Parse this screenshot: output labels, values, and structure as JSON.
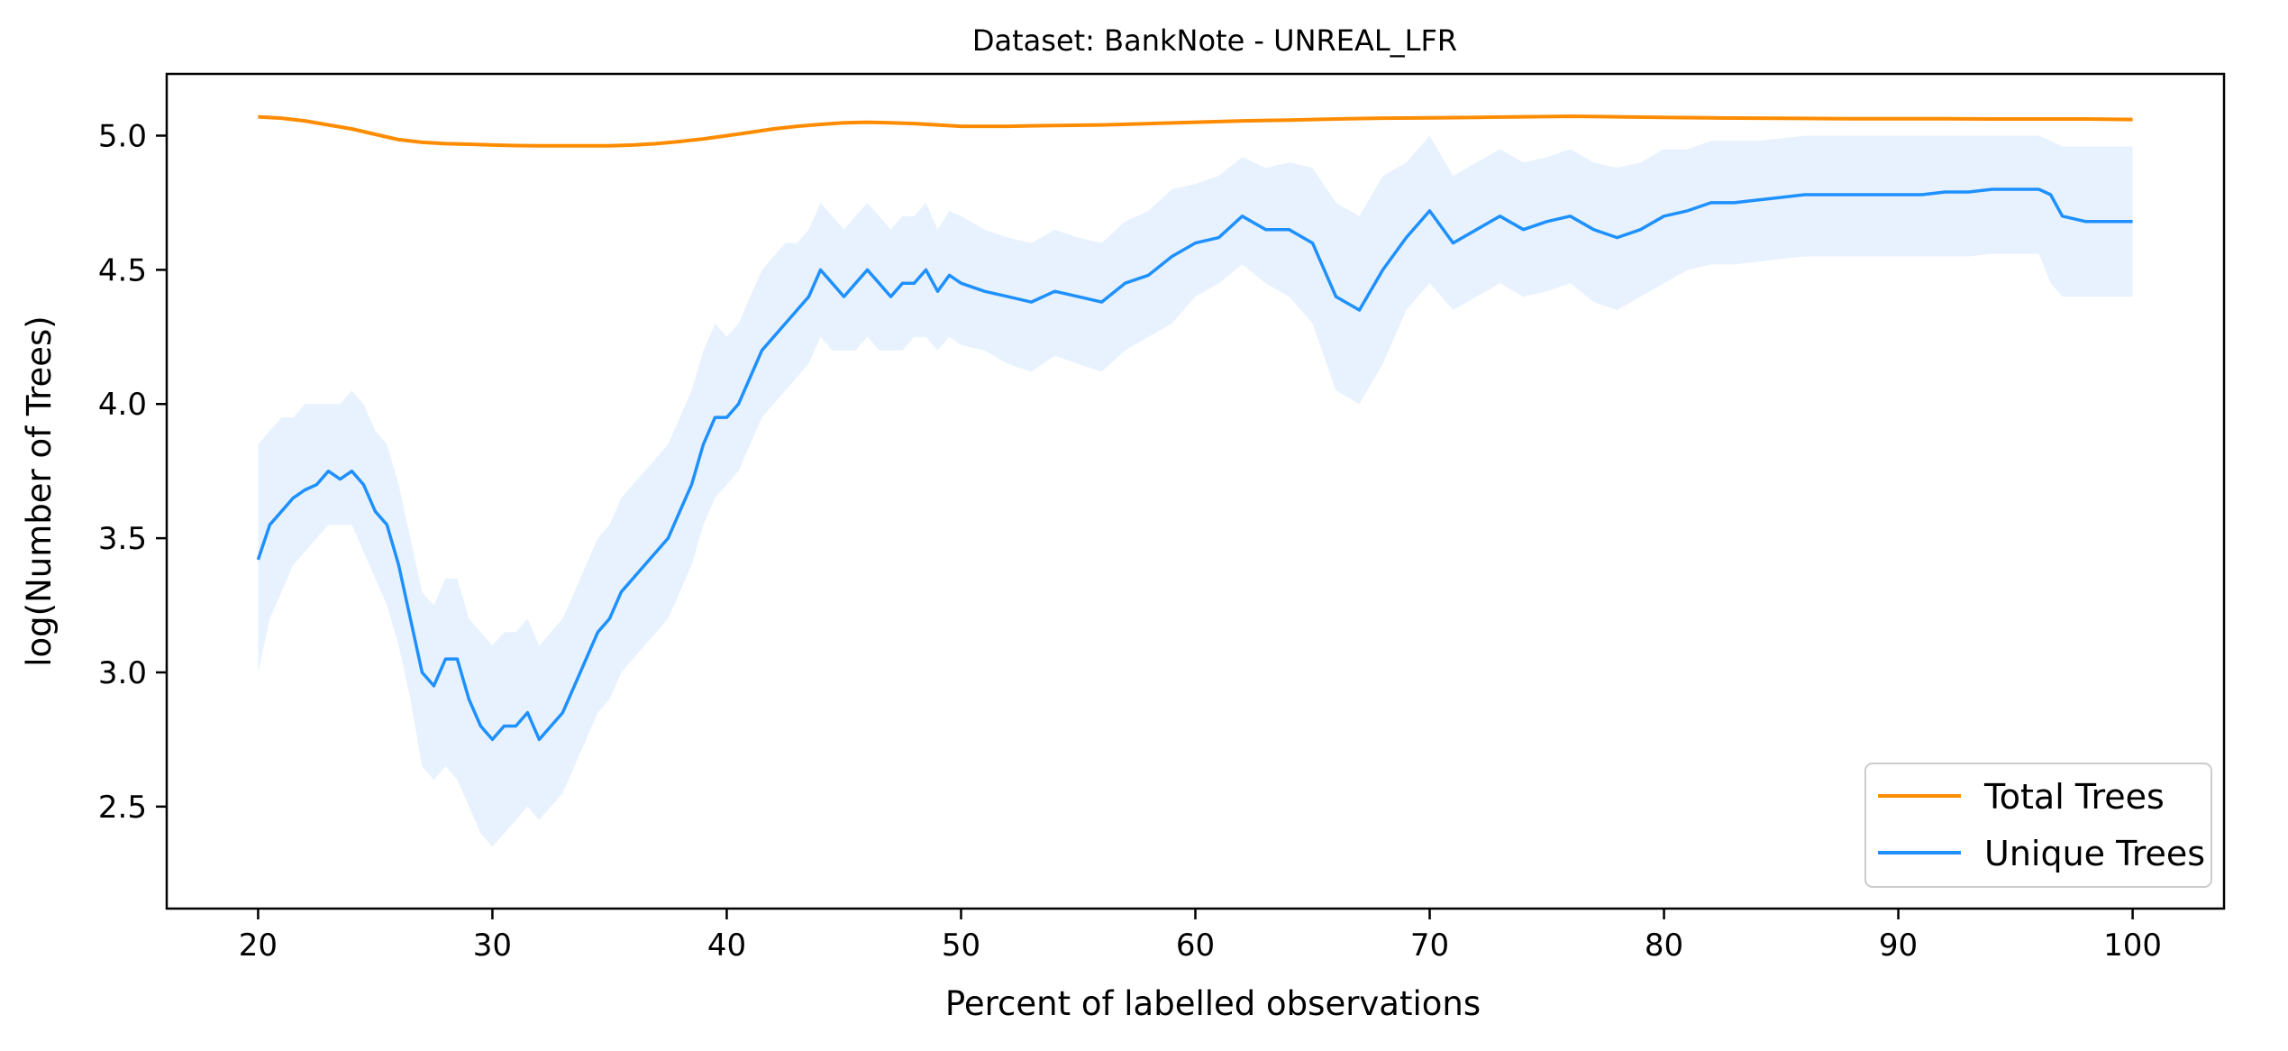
{
  "chart_data": {
    "type": "line",
    "title": "Dataset: BankNote - UNREAL_LFR",
    "xlabel": "Percent of labelled observations",
    "ylabel": "log(Number of Trees)",
    "xlim": [
      16.1,
      103.9
    ],
    "ylim": [
      2.12,
      5.23
    ],
    "x_ticks": [
      20,
      30,
      40,
      50,
      60,
      70,
      80,
      90,
      100
    ],
    "y_ticks": [
      2.5,
      3.0,
      3.5,
      4.0,
      4.5,
      5.0
    ],
    "x_tick_labels": [
      "20",
      "30",
      "40",
      "50",
      "60",
      "70",
      "80",
      "90",
      "100"
    ],
    "y_tick_labels": [
      "2.5",
      "3.0",
      "3.5",
      "4.0",
      "4.5",
      "5.0"
    ],
    "grid": false,
    "legend_position": "lower-right",
    "colors": {
      "total": "#ff8c00",
      "unique": "#1e90ff",
      "band": "#e8f2fe"
    },
    "series": [
      {
        "name": "Total Trees",
        "x": [
          20,
          21,
          22,
          23,
          24,
          25,
          26,
          27,
          28,
          29,
          30,
          31,
          32,
          33,
          34,
          35,
          36,
          37,
          38,
          39,
          40,
          41,
          42,
          43,
          44,
          45,
          46,
          47,
          48,
          49,
          50,
          52,
          54,
          56,
          58,
          60,
          62,
          64,
          66,
          68,
          70,
          72,
          74,
          76,
          78,
          80,
          82,
          84,
          86,
          88,
          90,
          92,
          94,
          96,
          98,
          100
        ],
        "values": [
          5.07,
          5.065,
          5.055,
          5.04,
          5.025,
          5.005,
          4.985,
          4.975,
          4.97,
          4.968,
          4.965,
          4.963,
          4.962,
          4.962,
          4.962,
          4.962,
          4.965,
          4.97,
          4.978,
          4.988,
          5.0,
          5.012,
          5.025,
          5.035,
          5.042,
          5.048,
          5.05,
          5.048,
          5.045,
          5.04,
          5.035,
          5.035,
          5.038,
          5.04,
          5.045,
          5.05,
          5.055,
          5.058,
          5.062,
          5.065,
          5.066,
          5.068,
          5.07,
          5.072,
          5.07,
          5.068,
          5.066,
          5.065,
          5.064,
          5.063,
          5.063,
          5.063,
          5.062,
          5.062,
          5.062,
          5.06
        ]
      },
      {
        "name": "Unique Trees",
        "x": [
          20,
          20.5,
          21,
          21.5,
          22,
          22.5,
          23,
          23.5,
          24,
          24.5,
          25,
          25.5,
          26,
          26.5,
          27,
          27.5,
          28,
          28.5,
          29,
          29.5,
          30,
          30.5,
          31,
          31.5,
          32,
          32.5,
          33,
          33.5,
          34,
          34.5,
          35,
          35.5,
          36,
          36.5,
          37,
          37.5,
          38,
          38.5,
          39,
          39.5,
          40,
          40.5,
          41,
          41.5,
          42,
          42.5,
          43,
          43.5,
          44,
          44.5,
          45,
          45.5,
          46,
          46.5,
          47,
          47.5,
          48,
          48.5,
          49,
          49.5,
          50,
          51,
          52,
          53,
          54,
          55,
          56,
          57,
          58,
          59,
          60,
          61,
          62,
          63,
          64,
          65,
          66,
          67,
          68,
          69,
          70,
          71,
          72,
          73,
          74,
          75,
          76,
          77,
          78,
          79,
          80,
          81,
          82,
          83,
          84,
          85,
          86,
          87,
          88,
          89,
          90,
          91,
          92,
          93,
          94,
          95,
          96,
          96.5,
          97,
          98,
          99,
          100
        ],
        "values": [
          3.42,
          3.55,
          3.6,
          3.65,
          3.68,
          3.7,
          3.75,
          3.72,
          3.75,
          3.7,
          3.6,
          3.55,
          3.4,
          3.2,
          3.0,
          2.95,
          3.05,
          3.05,
          2.9,
          2.8,
          2.75,
          2.8,
          2.8,
          2.85,
          2.75,
          2.8,
          2.85,
          2.95,
          3.05,
          3.15,
          3.2,
          3.3,
          3.35,
          3.4,
          3.45,
          3.5,
          3.6,
          3.7,
          3.85,
          3.95,
          3.95,
          4.0,
          4.1,
          4.2,
          4.25,
          4.3,
          4.35,
          4.4,
          4.5,
          4.45,
          4.4,
          4.45,
          4.5,
          4.45,
          4.4,
          4.45,
          4.45,
          4.5,
          4.42,
          4.48,
          4.45,
          4.42,
          4.4,
          4.38,
          4.42,
          4.4,
          4.38,
          4.45,
          4.48,
          4.55,
          4.6,
          4.62,
          4.7,
          4.65,
          4.65,
          4.6,
          4.4,
          4.35,
          4.5,
          4.62,
          4.72,
          4.6,
          4.65,
          4.7,
          4.65,
          4.68,
          4.7,
          4.65,
          4.62,
          4.65,
          4.7,
          4.72,
          4.75,
          4.75,
          4.76,
          4.77,
          4.78,
          4.78,
          4.78,
          4.78,
          4.78,
          4.78,
          4.79,
          4.79,
          4.8,
          4.8,
          4.8,
          4.78,
          4.7,
          4.68,
          4.68,
          4.68
        ],
        "band_lower": [
          3.0,
          3.2,
          3.3,
          3.4,
          3.45,
          3.5,
          3.55,
          3.55,
          3.55,
          3.45,
          3.35,
          3.25,
          3.1,
          2.9,
          2.65,
          2.6,
          2.65,
          2.6,
          2.5,
          2.4,
          2.35,
          2.4,
          2.45,
          2.5,
          2.45,
          2.5,
          2.55,
          2.65,
          2.75,
          2.85,
          2.9,
          3.0,
          3.05,
          3.1,
          3.15,
          3.2,
          3.3,
          3.4,
          3.55,
          3.65,
          3.7,
          3.75,
          3.85,
          3.95,
          4.0,
          4.05,
          4.1,
          4.15,
          4.25,
          4.2,
          4.2,
          4.2,
          4.25,
          4.2,
          4.2,
          4.2,
          4.25,
          4.25,
          4.2,
          4.25,
          4.22,
          4.2,
          4.15,
          4.12,
          4.18,
          4.15,
          4.12,
          4.2,
          4.25,
          4.3,
          4.4,
          4.45,
          4.52,
          4.45,
          4.4,
          4.3,
          4.05,
          4.0,
          4.15,
          4.35,
          4.45,
          4.35,
          4.4,
          4.45,
          4.4,
          4.42,
          4.45,
          4.38,
          4.35,
          4.4,
          4.45,
          4.5,
          4.52,
          4.52,
          4.53,
          4.54,
          4.55,
          4.55,
          4.55,
          4.55,
          4.55,
          4.55,
          4.55,
          4.55,
          4.56,
          4.56,
          4.56,
          4.45,
          4.4,
          4.4,
          4.4,
          4.4
        ],
        "band_upper": [
          3.85,
          3.9,
          3.95,
          3.95,
          4.0,
          4.0,
          4.0,
          4.0,
          4.05,
          4.0,
          3.9,
          3.85,
          3.7,
          3.5,
          3.3,
          3.25,
          3.35,
          3.35,
          3.2,
          3.15,
          3.1,
          3.15,
          3.15,
          3.2,
          3.1,
          3.15,
          3.2,
          3.3,
          3.4,
          3.5,
          3.55,
          3.65,
          3.7,
          3.75,
          3.8,
          3.85,
          3.95,
          4.05,
          4.2,
          4.3,
          4.25,
          4.3,
          4.4,
          4.5,
          4.55,
          4.6,
          4.6,
          4.65,
          4.75,
          4.7,
          4.65,
          4.7,
          4.75,
          4.7,
          4.65,
          4.7,
          4.7,
          4.75,
          4.65,
          4.72,
          4.7,
          4.65,
          4.62,
          4.6,
          4.65,
          4.62,
          4.6,
          4.68,
          4.72,
          4.8,
          4.82,
          4.85,
          4.92,
          4.88,
          4.9,
          4.88,
          4.75,
          4.7,
          4.85,
          4.9,
          5.0,
          4.85,
          4.9,
          4.95,
          4.9,
          4.92,
          4.95,
          4.9,
          4.88,
          4.9,
          4.95,
          4.95,
          4.98,
          4.98,
          4.98,
          4.99,
          5.0,
          5.0,
          5.0,
          5.0,
          5.0,
          5.0,
          5.0,
          5.0,
          5.0,
          5.0,
          5.0,
          4.98,
          4.96,
          4.96,
          4.96,
          4.96
        ]
      }
    ]
  }
}
